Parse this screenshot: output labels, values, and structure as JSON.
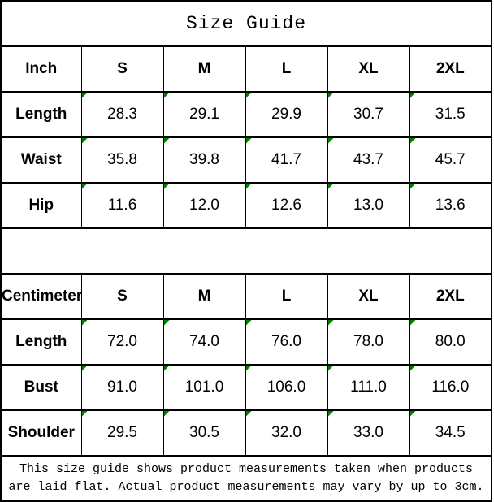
{
  "title": "Size Guide",
  "colors": {
    "flag_triangle": "#008000",
    "border": "#000000",
    "background": "#ffffff"
  },
  "flag_icon_meaning": "excel-text-flag-triangle-icon",
  "tables": {
    "inch": {
      "unit_label": "Inch",
      "header": [
        "Inch",
        "S",
        "M",
        "L",
        "XL",
        "2XL"
      ],
      "rows": [
        {
          "label": "Length",
          "values": [
            "28.3",
            "29.1",
            "29.9",
            "30.7",
            "31.5"
          ]
        },
        {
          "label": "Waist",
          "values": [
            "35.8",
            "39.8",
            "41.7",
            "43.7",
            "45.7"
          ]
        },
        {
          "label": "Hip",
          "values": [
            "11.6",
            "12.0",
            "12.6",
            "13.0",
            "13.6"
          ]
        }
      ]
    },
    "centimeter": {
      "unit_label": "Centimeter",
      "header": [
        "Centimeter",
        "S",
        "M",
        "L",
        "XL",
        "2XL"
      ],
      "rows": [
        {
          "label": "Length",
          "values": [
            "72.0",
            "74.0",
            "76.0",
            "78.0",
            "80.0"
          ]
        },
        {
          "label": "Bust",
          "values": [
            "91.0",
            "101.0",
            "106.0",
            "111.0",
            "116.0"
          ]
        },
        {
          "label": "Shoulder",
          "values": [
            "29.5",
            "30.5",
            "32.0",
            "33.0",
            "34.5"
          ]
        }
      ]
    }
  },
  "footnote": {
    "line1": "This size guide shows product measurements taken when products",
    "line2": "are laid flat. Actual product measurements may vary by up to 3cm."
  }
}
